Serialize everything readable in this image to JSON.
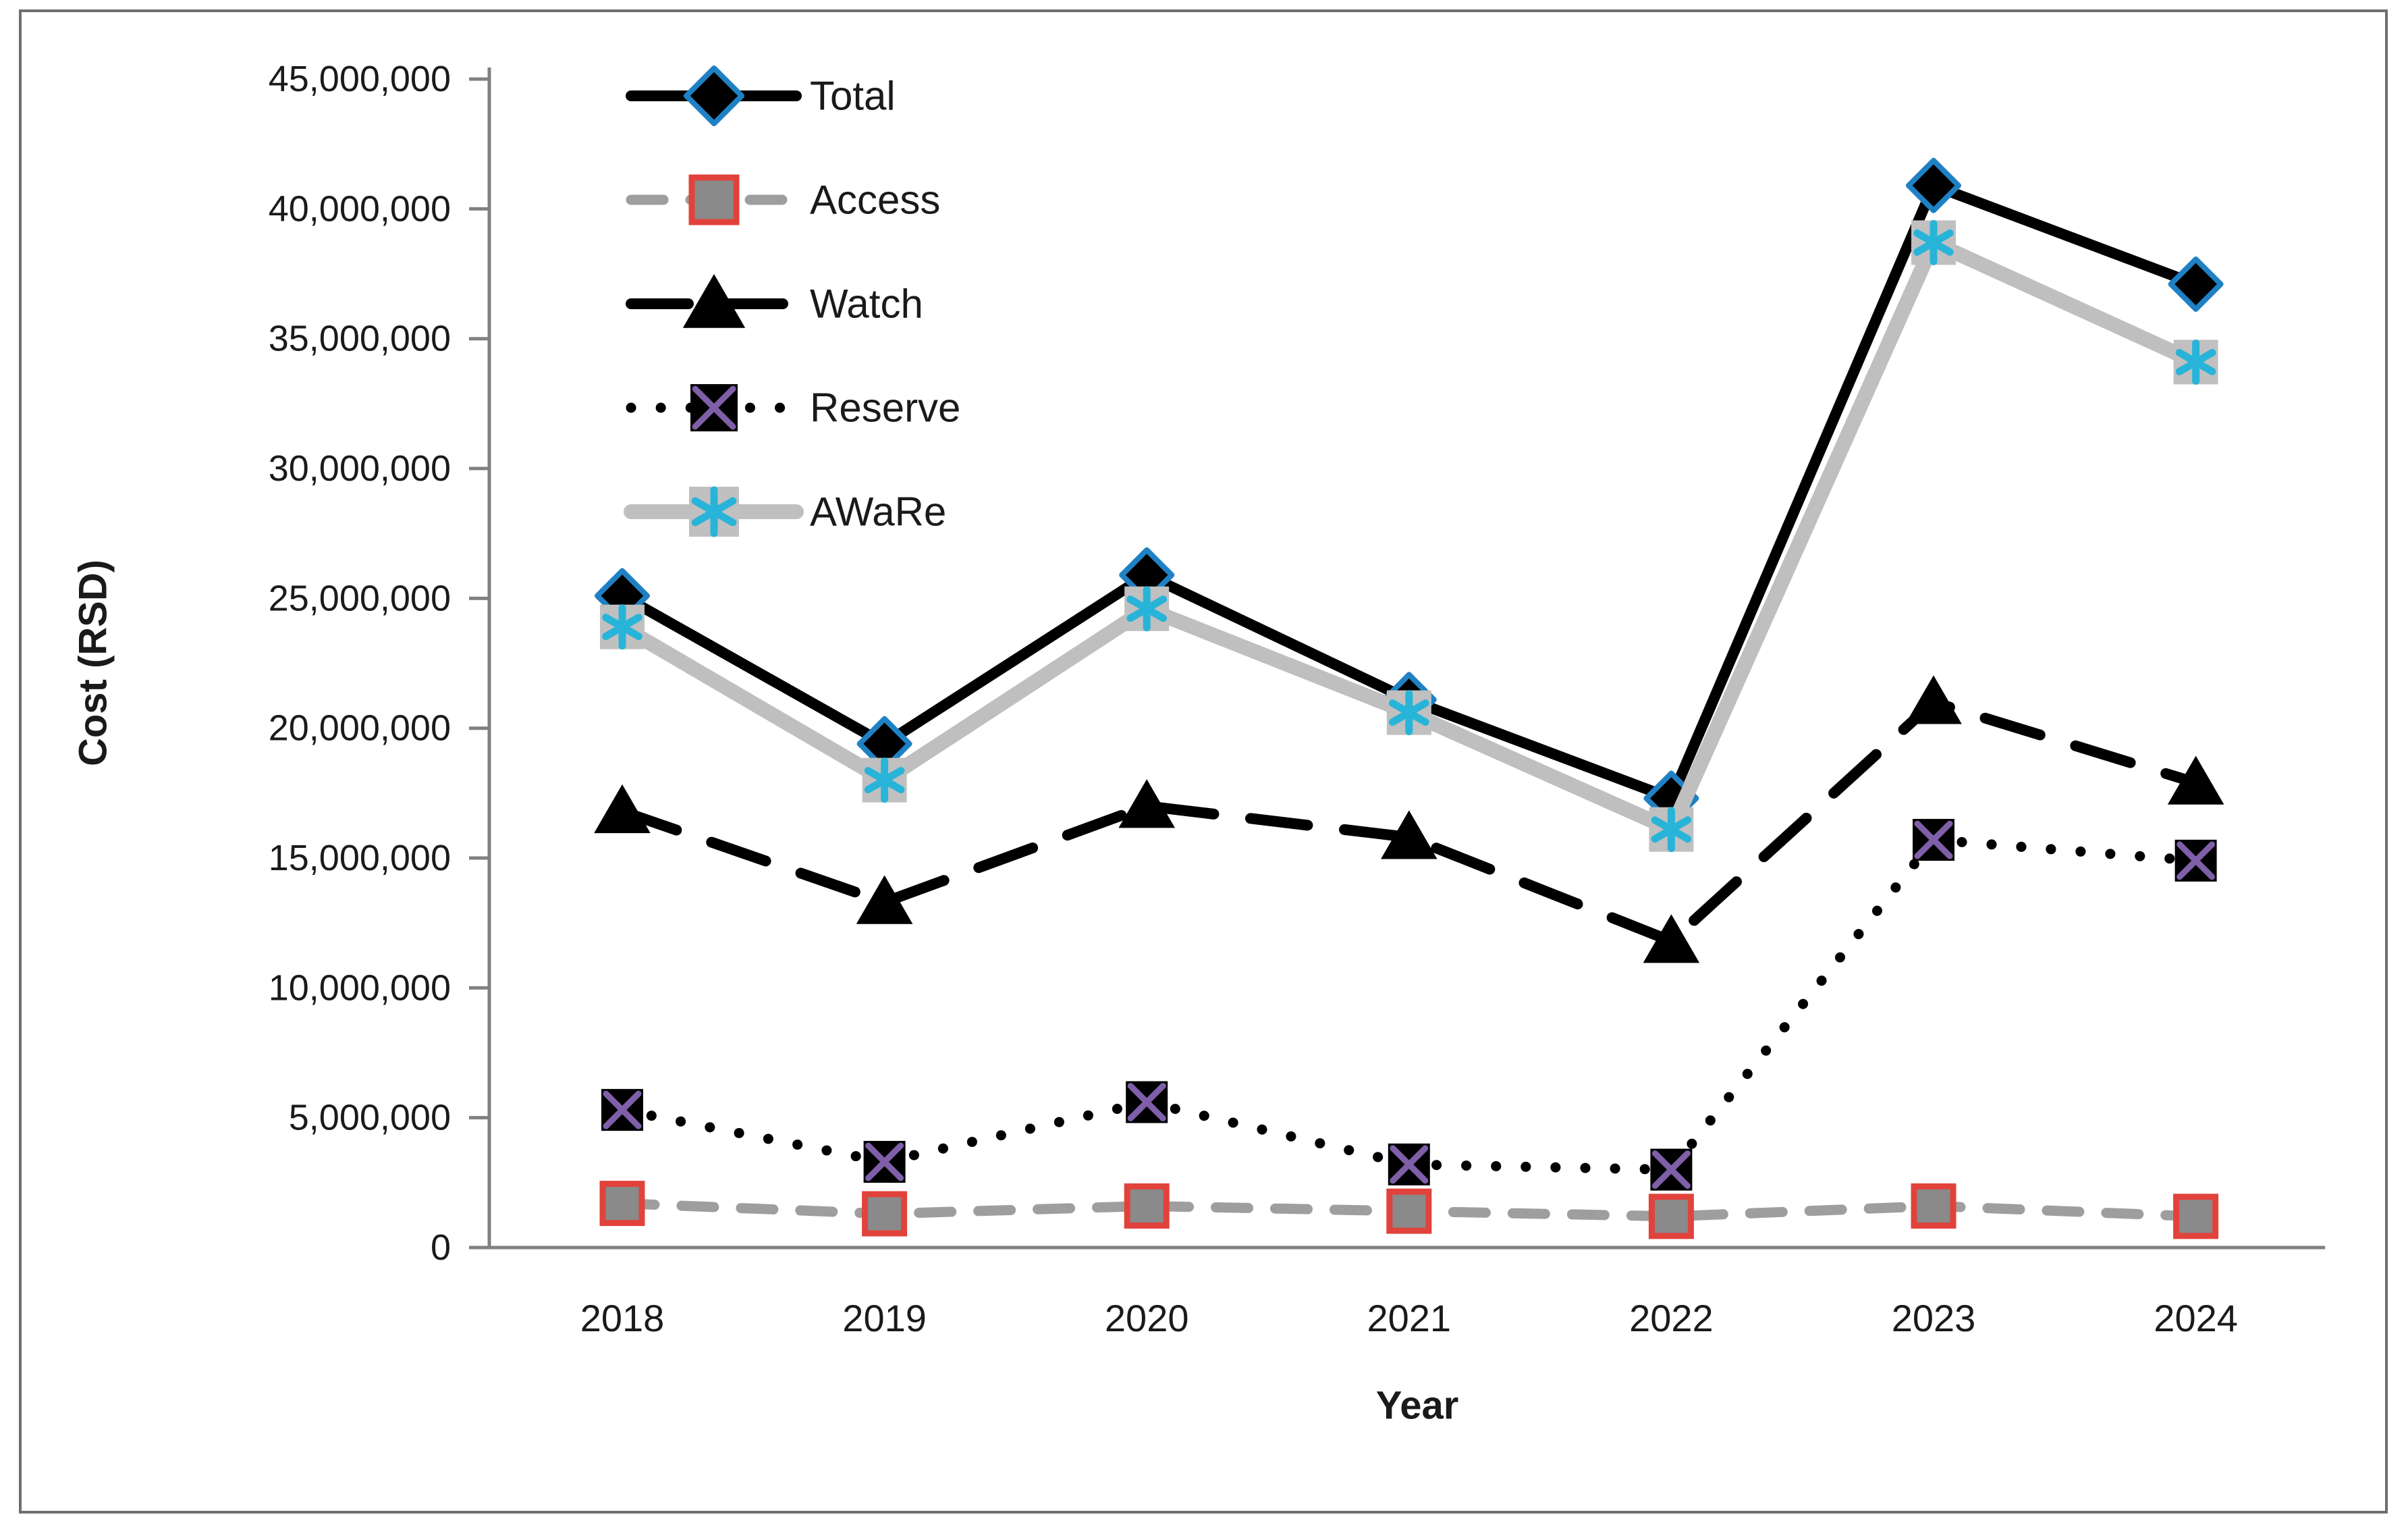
{
  "figure": {
    "background": "#ffffff",
    "border_color": "#6e6e6e",
    "axis_color": "#808080",
    "text_color": "#1a1a1a"
  },
  "chart_data": {
    "type": "line",
    "title": "",
    "xlabel": "Year",
    "ylabel": "Cost (RSD)",
    "categories": [
      "2018",
      "2019",
      "2020",
      "2021",
      "2022",
      "2023",
      "2024"
    ],
    "y_axis": {
      "min": 0,
      "max": 45000000,
      "tick_interval": 5000000,
      "tick_labels": [
        "0",
        "5,000,000",
        "10,000,000",
        "15,000,000",
        "20,000,000",
        "25,000,000",
        "30,000,000",
        "35,000,000",
        "40,000,000",
        "45,000,000"
      ]
    },
    "grid": "off",
    "legend_position": "top-left-inside",
    "series": [
      {
        "name": "Total",
        "values": [
          25100000,
          19400000,
          25900000,
          21100000,
          17300000,
          40900000,
          37100000
        ],
        "line_color": "#000000",
        "line_style": "solid",
        "line_width": 16,
        "marker": "diamond",
        "marker_fill": "#000000",
        "marker_stroke": "#1f81c4"
      },
      {
        "name": "Access",
        "values": [
          1700000,
          1300000,
          1600000,
          1400000,
          1200000,
          1600000,
          1200000
        ],
        "line_color": "#9e9e9e",
        "line_style": "dash",
        "line_width": 15,
        "marker": "square",
        "marker_fill": "#8a8a8a",
        "marker_stroke": "#e2423c"
      },
      {
        "name": "Watch",
        "values": [
          16800000,
          13300000,
          17000000,
          15800000,
          11800000,
          21000000,
          17900000
        ],
        "line_color": "#000000",
        "line_style": "longdash",
        "line_width": 16,
        "marker": "triangle",
        "marker_fill": "#000000",
        "marker_stroke": "#000000"
      },
      {
        "name": "Reserve",
        "values": [
          5300000,
          3300000,
          5600000,
          3200000,
          3000000,
          15700000,
          14900000
        ],
        "line_color": "#000000",
        "line_style": "dot",
        "line_width": 15,
        "marker": "xsquare",
        "marker_fill": "#000000",
        "marker_stroke": "#7e5fa8"
      },
      {
        "name": "AWaRe",
        "values": [
          23900000,
          18000000,
          24600000,
          20600000,
          16100000,
          38700000,
          34100000
        ],
        "line_color": "#bfbfbf",
        "line_style": "solid",
        "line_width": 22,
        "marker": "star6",
        "marker_fill": "#c0c0c0",
        "marker_stroke": "#28b4d8"
      }
    ]
  }
}
